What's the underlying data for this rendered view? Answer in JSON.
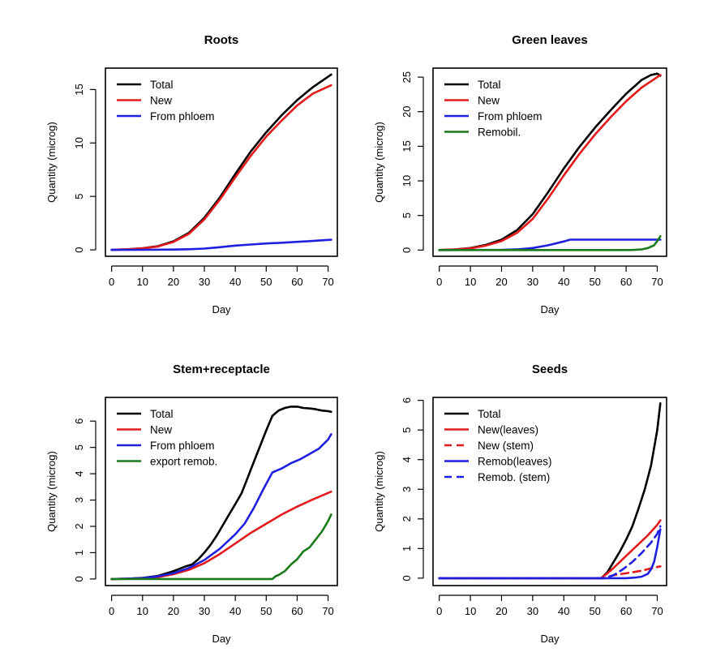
{
  "chart_data": [
    {
      "type": "line",
      "title": "Roots",
      "xlabel": "Day",
      "ylabel": "Quantity (microg)",
      "xlim": [
        -2,
        73
      ],
      "ylim": [
        -0.6,
        17.0
      ],
      "xticks": [
        0,
        10,
        20,
        30,
        40,
        50,
        60,
        70
      ],
      "yticks": [
        0,
        5,
        10,
        15
      ],
      "legend_position": "top-left",
      "series": [
        {
          "name": "Total",
          "color": "#000000",
          "dash": "solid",
          "x": [
            0,
            5,
            10,
            15,
            20,
            25,
            30,
            35,
            40,
            45,
            50,
            55,
            60,
            65,
            71
          ],
          "y": [
            0,
            0.05,
            0.15,
            0.35,
            0.8,
            1.6,
            3.0,
            4.9,
            7.1,
            9.2,
            11.0,
            12.6,
            14.0,
            15.2,
            16.4
          ]
        },
        {
          "name": "New",
          "color": "#e31a1c",
          "dash": "solid",
          "x": [
            0,
            5,
            10,
            15,
            20,
            25,
            30,
            35,
            40,
            45,
            50,
            55,
            60,
            65,
            71
          ],
          "y": [
            0,
            0.05,
            0.14,
            0.32,
            0.75,
            1.5,
            2.85,
            4.7,
            6.8,
            8.8,
            10.6,
            12.1,
            13.5,
            14.6,
            15.4
          ]
        },
        {
          "name": "From phloem",
          "color": "#1f1fe0",
          "dash": "solid",
          "x": [
            0,
            10,
            20,
            25,
            30,
            35,
            40,
            45,
            50,
            55,
            60,
            65,
            71
          ],
          "y": [
            0,
            0.01,
            0.03,
            0.06,
            0.12,
            0.25,
            0.4,
            0.5,
            0.6,
            0.67,
            0.75,
            0.83,
            0.95
          ]
        }
      ]
    },
    {
      "type": "line",
      "title": "Green leaves",
      "xlabel": "Day",
      "ylabel": "Quantity (microg)",
      "xlim": [
        -2,
        73
      ],
      "ylim": [
        -0.9,
        26.3
      ],
      "xticks": [
        0,
        10,
        20,
        30,
        40,
        50,
        60,
        70
      ],
      "yticks": [
        0,
        5,
        10,
        15,
        20,
        25
      ],
      "legend_position": "top-left",
      "series": [
        {
          "name": "Total",
          "color": "#000000",
          "dash": "solid",
          "x": [
            0,
            5,
            10,
            15,
            20,
            25,
            30,
            35,
            40,
            45,
            50,
            55,
            60,
            65,
            68,
            70,
            71
          ],
          "y": [
            0,
            0.1,
            0.3,
            0.75,
            1.5,
            2.9,
            5.2,
            8.4,
            11.8,
            14.9,
            17.7,
            20.2,
            22.6,
            24.6,
            25.3,
            25.5,
            25.2
          ]
        },
        {
          "name": "New",
          "color": "#e31a1c",
          "dash": "solid",
          "x": [
            0,
            5,
            10,
            15,
            20,
            25,
            30,
            35,
            40,
            45,
            50,
            55,
            60,
            65,
            70,
            71
          ],
          "y": [
            0,
            0.08,
            0.25,
            0.65,
            1.3,
            2.5,
            4.5,
            7.5,
            10.8,
            13.9,
            16.7,
            19.2,
            21.5,
            23.5,
            25.0,
            25.3
          ]
        },
        {
          "name": "From phloem",
          "color": "#1f1fe0",
          "dash": "solid",
          "x": [
            0,
            20,
            25,
            30,
            35,
            40,
            42,
            50,
            60,
            70,
            71
          ],
          "y": [
            0,
            0.04,
            0.1,
            0.3,
            0.7,
            1.25,
            1.5,
            1.5,
            1.5,
            1.5,
            1.5
          ]
        },
        {
          "name": "Remobil.",
          "color": "#1a7a1a",
          "dash": "solid",
          "x": [
            0,
            55,
            62,
            65,
            67,
            69,
            70,
            71
          ],
          "y": [
            0,
            0,
            0.02,
            0.1,
            0.3,
            0.7,
            1.3,
            2.0
          ]
        }
      ]
    },
    {
      "type": "line",
      "title": "Stem+receptacle",
      "xlabel": "Day",
      "ylabel": "Quantity (microg)",
      "xlim": [
        -2,
        73
      ],
      "ylim": [
        -0.25,
        6.9
      ],
      "xticks": [
        0,
        10,
        20,
        30,
        40,
        50,
        60,
        70
      ],
      "yticks": [
        0,
        1,
        2,
        3,
        4,
        5,
        6
      ],
      "legend_position": "top-left",
      "series": [
        {
          "name": "Total",
          "color": "#000000",
          "dash": "solid",
          "x": [
            0,
            5,
            10,
            15,
            20,
            24,
            26,
            28,
            30,
            32,
            34,
            36,
            38,
            40,
            42,
            44,
            46,
            48,
            50,
            52,
            54,
            56,
            58,
            60,
            62,
            64,
            66,
            68,
            70,
            71
          ],
          "y": [
            0,
            0.01,
            0.04,
            0.12,
            0.3,
            0.48,
            0.55,
            0.75,
            1.0,
            1.3,
            1.65,
            2.05,
            2.45,
            2.85,
            3.25,
            3.85,
            4.45,
            5.05,
            5.65,
            6.2,
            6.4,
            6.5,
            6.55,
            6.55,
            6.5,
            6.48,
            6.45,
            6.4,
            6.38,
            6.35
          ]
        },
        {
          "name": "New",
          "color": "#e31a1c",
          "dash": "solid",
          "x": [
            0,
            10,
            15,
            20,
            25,
            30,
            35,
            40,
            45,
            50,
            55,
            60,
            65,
            71
          ],
          "y": [
            0,
            0.02,
            0.07,
            0.18,
            0.35,
            0.6,
            0.95,
            1.35,
            1.75,
            2.1,
            2.45,
            2.75,
            3.02,
            3.32
          ]
        },
        {
          "name": "From phloem",
          "color": "#1f1fe0",
          "dash": "solid",
          "x": [
            0,
            10,
            15,
            20,
            25,
            30,
            35,
            40,
            43,
            46,
            49,
            52,
            55,
            58,
            61,
            64,
            67,
            70,
            71
          ],
          "y": [
            0,
            0.03,
            0.1,
            0.22,
            0.42,
            0.72,
            1.15,
            1.7,
            2.1,
            2.7,
            3.4,
            4.05,
            4.2,
            4.4,
            4.55,
            4.75,
            4.95,
            5.3,
            5.5
          ]
        },
        {
          "name": "export remob.",
          "color": "#1a7a1a",
          "dash": "solid",
          "x": [
            0,
            52,
            53,
            54,
            56,
            58,
            60,
            62,
            64,
            66,
            68,
            70,
            71
          ],
          "y": [
            0,
            0,
            0.1,
            0.15,
            0.3,
            0.55,
            0.75,
            1.05,
            1.2,
            1.5,
            1.8,
            2.2,
            2.45
          ]
        }
      ]
    },
    {
      "type": "line",
      "title": "Seeds",
      "xlabel": "Day",
      "ylabel": "Quantity (microg)",
      "xlim": [
        -2,
        73
      ],
      "ylim": [
        -0.25,
        6.1
      ],
      "xticks": [
        0,
        10,
        20,
        30,
        40,
        50,
        60,
        70
      ],
      "yticks": [
        0,
        1,
        2,
        3,
        4,
        5,
        6
      ],
      "legend_position": "top-left",
      "series": [
        {
          "name": "Total",
          "color": "#000000",
          "dash": "solid",
          "x": [
            0,
            52,
            54,
            56,
            58,
            60,
            62,
            64,
            66,
            68,
            70,
            71
          ],
          "y": [
            0,
            0,
            0.2,
            0.55,
            0.9,
            1.3,
            1.75,
            2.35,
            3.0,
            3.8,
            5.0,
            5.9
          ]
        },
        {
          "name": "New(leaves)",
          "color": "#e31a1c",
          "dash": "solid",
          "x": [
            0,
            52,
            55,
            58,
            61,
            64,
            67,
            70,
            71
          ],
          "y": [
            0,
            0,
            0.25,
            0.55,
            0.85,
            1.15,
            1.45,
            1.8,
            1.95
          ]
        },
        {
          "name": "New (stem)",
          "color": "#e31a1c",
          "dash": "dashed",
          "x": [
            0,
            53,
            56,
            59,
            62,
            65,
            68,
            71
          ],
          "y": [
            0,
            0,
            0.1,
            0.15,
            0.2,
            0.25,
            0.33,
            0.4
          ]
        },
        {
          "name": "Remob(leaves)",
          "color": "#1f1fe0",
          "dash": "solid",
          "x": [
            0,
            60,
            63,
            65,
            67,
            68,
            69,
            70,
            71
          ],
          "y": [
            0,
            0,
            0.02,
            0.05,
            0.15,
            0.3,
            0.55,
            1.05,
            1.65
          ]
        },
        {
          "name": "Remob. (stem)",
          "color": "#1f1fe0",
          "dash": "dashed",
          "x": [
            0,
            53,
            56,
            59,
            62,
            65,
            68,
            70,
            71
          ],
          "y": [
            0,
            0,
            0.1,
            0.3,
            0.55,
            0.85,
            1.2,
            1.5,
            1.75
          ]
        }
      ]
    }
  ]
}
